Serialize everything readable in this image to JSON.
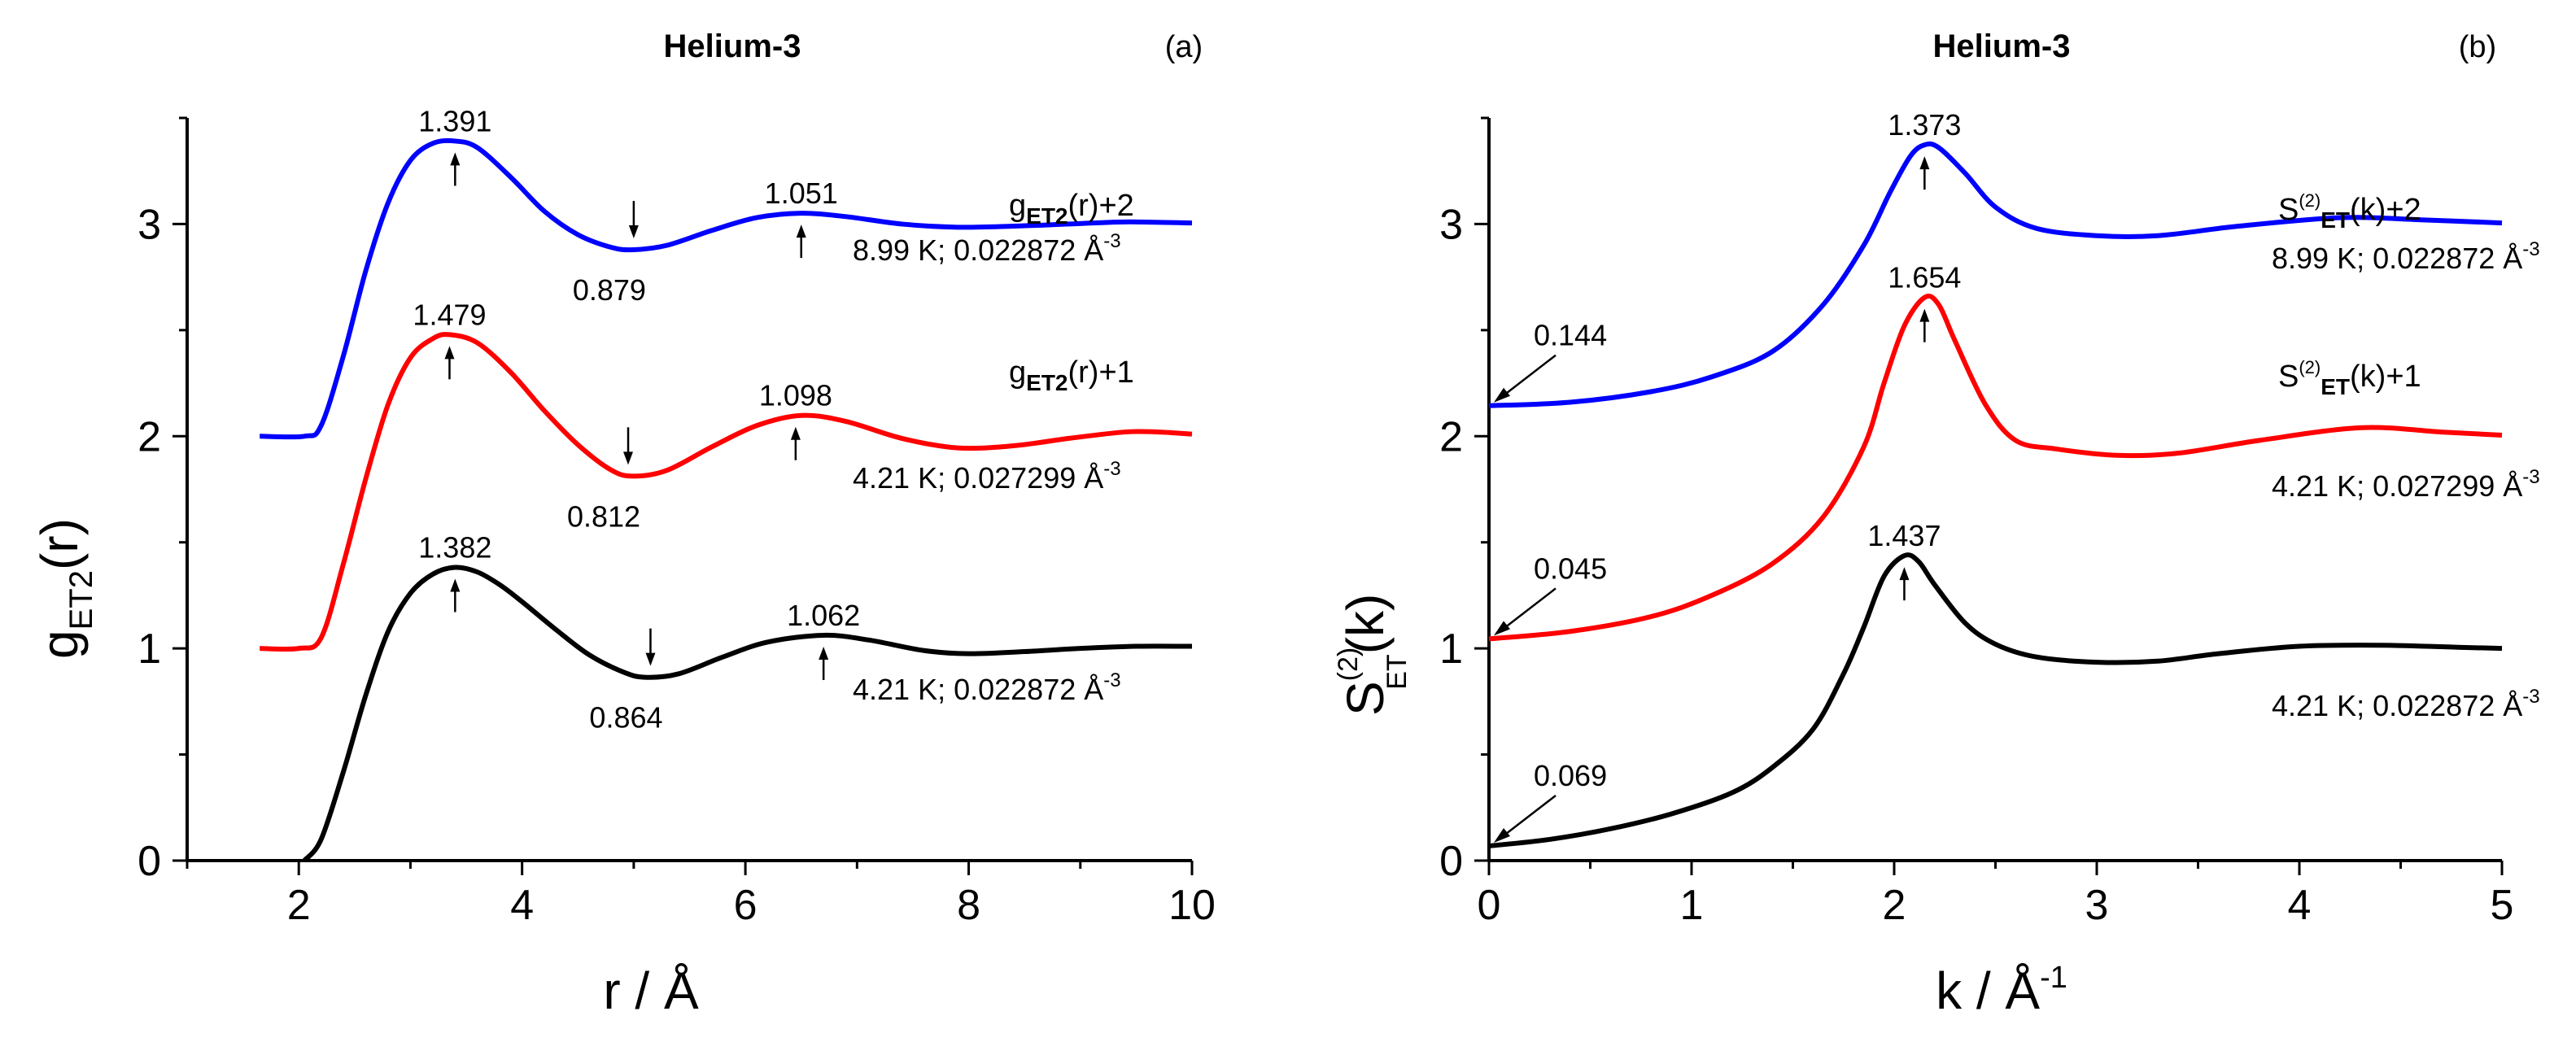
{
  "chart_data": [
    {
      "type": "line",
      "panel": "(a)",
      "title": "Helium-3",
      "xlabel": "r / Å",
      "ylabel": "g_ET2(r)",
      "xlim": [
        1,
        10
      ],
      "ylim": [
        0,
        3.5
      ],
      "x_ticks": [
        2,
        4,
        6,
        8,
        10
      ],
      "y_ticks": [
        0,
        1,
        2,
        3
      ],
      "series": [
        {
          "name": "4.21 K; 0.022872 Å⁻³",
          "color": "#000000",
          "offset": 0,
          "curve_label": "",
          "condition": "4.21 K; 0.022872 Å",
          "points": [
            [
              2.05,
              0
            ],
            [
              2.2,
              0.1
            ],
            [
              2.4,
              0.42
            ],
            [
              2.6,
              0.78
            ],
            [
              2.8,
              1.08
            ],
            [
              3.0,
              1.26
            ],
            [
              3.2,
              1.35
            ],
            [
              3.4,
              1.382
            ],
            [
              3.6,
              1.36
            ],
            [
              3.8,
              1.3
            ],
            [
              4.0,
              1.22
            ],
            [
              4.3,
              1.09
            ],
            [
              4.6,
              0.97
            ],
            [
              4.9,
              0.89
            ],
            [
              5.1,
              0.864
            ],
            [
              5.4,
              0.88
            ],
            [
              5.8,
              0.96
            ],
            [
              6.2,
              1.03
            ],
            [
              6.7,
              1.062
            ],
            [
              7.1,
              1.04
            ],
            [
              7.6,
              0.99
            ],
            [
              8.0,
              0.975
            ],
            [
              8.5,
              0.985
            ],
            [
              9.0,
              1.0
            ],
            [
              9.5,
              1.01
            ],
            [
              10.0,
              1.01
            ]
          ]
        },
        {
          "name": "4.21 K; 0.027299 Å⁻³",
          "color": "#ff0000",
          "offset": 1,
          "curve_label": "+1",
          "condition": "4.21 K; 0.027299 Å",
          "points": [
            [
              1.65,
              0
            ],
            [
              2.0,
              0
            ],
            [
              2.2,
              0.05
            ],
            [
              2.4,
              0.4
            ],
            [
              2.6,
              0.8
            ],
            [
              2.8,
              1.15
            ],
            [
              3.0,
              1.37
            ],
            [
              3.2,
              1.46
            ],
            [
              3.35,
              1.479
            ],
            [
              3.6,
              1.44
            ],
            [
              3.9,
              1.3
            ],
            [
              4.2,
              1.12
            ],
            [
              4.5,
              0.96
            ],
            [
              4.8,
              0.84
            ],
            [
              5.0,
              0.812
            ],
            [
              5.3,
              0.84
            ],
            [
              5.7,
              0.95
            ],
            [
              6.1,
              1.05
            ],
            [
              6.5,
              1.098
            ],
            [
              6.9,
              1.07
            ],
            [
              7.4,
              0.99
            ],
            [
              7.9,
              0.945
            ],
            [
              8.4,
              0.955
            ],
            [
              8.9,
              0.99
            ],
            [
              9.4,
              1.02
            ],
            [
              9.7,
              1.02
            ],
            [
              10.0,
              1.01
            ]
          ]
        },
        {
          "name": "8.99 K; 0.022872 Å⁻³",
          "color": "#0000ff",
          "offset": 2,
          "curve_label": "+2",
          "condition": "8.99 K; 0.022872 Å",
          "points": [
            [
              1.65,
              0
            ],
            [
              2.05,
              0
            ],
            [
              2.2,
              0.05
            ],
            [
              2.4,
              0.38
            ],
            [
              2.6,
              0.78
            ],
            [
              2.8,
              1.1
            ],
            [
              3.0,
              1.3
            ],
            [
              3.2,
              1.38
            ],
            [
              3.4,
              1.391
            ],
            [
              3.6,
              1.36
            ],
            [
              3.9,
              1.22
            ],
            [
              4.2,
              1.06
            ],
            [
              4.5,
              0.95
            ],
            [
              4.8,
              0.89
            ],
            [
              5.0,
              0.879
            ],
            [
              5.3,
              0.9
            ],
            [
              5.7,
              0.97
            ],
            [
              6.1,
              1.03
            ],
            [
              6.5,
              1.051
            ],
            [
              6.9,
              1.035
            ],
            [
              7.4,
              1.0
            ],
            [
              7.9,
              0.985
            ],
            [
              8.4,
              0.99
            ],
            [
              8.9,
              1.0
            ],
            [
              9.4,
              1.01
            ],
            [
              10.0,
              1.005
            ]
          ]
        }
      ],
      "annotations": [
        {
          "text": "1.391",
          "x": 3.4,
          "y": 3.391,
          "arrow": "up"
        },
        {
          "text": "0.879",
          "x": 5.0,
          "y": 2.879,
          "arrow": "down"
        },
        {
          "text": "1.051",
          "x": 6.5,
          "y": 3.051,
          "arrow": "up"
        },
        {
          "text": "1.479",
          "x": 3.35,
          "y": 2.479,
          "arrow": "up"
        },
        {
          "text": "0.812",
          "x": 4.95,
          "y": 1.812,
          "arrow": "down"
        },
        {
          "text": "1.098",
          "x": 6.45,
          "y": 2.098,
          "arrow": "up"
        },
        {
          "text": "1.382",
          "x": 3.4,
          "y": 1.382,
          "arrow": "up"
        },
        {
          "text": "0.864",
          "x": 5.15,
          "y": 0.864,
          "arrow": "down"
        },
        {
          "text": "1.062",
          "x": 6.7,
          "y": 1.062,
          "arrow": "up"
        }
      ]
    },
    {
      "type": "line",
      "panel": "(b)",
      "title": "Helium-3",
      "xlabel": "k / Å⁻¹",
      "ylabel": "S⁽²⁾ET(k)",
      "xlim": [
        0,
        5
      ],
      "ylim": [
        0,
        3.5
      ],
      "x_ticks": [
        0,
        1,
        2,
        3,
        4,
        5
      ],
      "y_ticks": [
        0,
        1,
        2,
        3
      ],
      "series": [
        {
          "name": "4.21 K; 0.022872 Å⁻³",
          "color": "#000000",
          "offset": 0,
          "curve_label": "",
          "condition": "4.21 K; 0.022872 Å",
          "points": [
            [
              0,
              0.069
            ],
            [
              0.3,
              0.1
            ],
            [
              0.6,
              0.15
            ],
            [
              0.9,
              0.22
            ],
            [
              1.2,
              0.32
            ],
            [
              1.4,
              0.44
            ],
            [
              1.6,
              0.62
            ],
            [
              1.75,
              0.88
            ],
            [
              1.85,
              1.1
            ],
            [
              1.95,
              1.34
            ],
            [
              2.05,
              1.437
            ],
            [
              2.12,
              1.41
            ],
            [
              2.2,
              1.3
            ],
            [
              2.35,
              1.12
            ],
            [
              2.5,
              1.02
            ],
            [
              2.7,
              0.96
            ],
            [
              3.0,
              0.935
            ],
            [
              3.3,
              0.94
            ],
            [
              3.6,
              0.975
            ],
            [
              4.0,
              1.01
            ],
            [
              4.4,
              1.015
            ],
            [
              4.8,
              1.005
            ],
            [
              5.0,
              1.0
            ]
          ]
        },
        {
          "name": "4.21 K; 0.027299 Å⁻³",
          "color": "#ff0000",
          "offset": 1,
          "curve_label": "+1",
          "condition": "4.21 K; 0.027299 Å",
          "points": [
            [
              0,
              0.045
            ],
            [
              0.4,
              0.08
            ],
            [
              0.8,
              0.15
            ],
            [
              1.1,
              0.25
            ],
            [
              1.4,
              0.4
            ],
            [
              1.65,
              0.62
            ],
            [
              1.85,
              0.95
            ],
            [
              1.95,
              1.25
            ],
            [
              2.05,
              1.52
            ],
            [
              2.15,
              1.654
            ],
            [
              2.22,
              1.62
            ],
            [
              2.3,
              1.45
            ],
            [
              2.45,
              1.15
            ],
            [
              2.6,
              0.98
            ],
            [
              2.8,
              0.94
            ],
            [
              3.1,
              0.91
            ],
            [
              3.4,
              0.92
            ],
            [
              3.8,
              0.98
            ],
            [
              4.3,
              1.04
            ],
            [
              4.7,
              1.02
            ],
            [
              5.0,
              1.005
            ]
          ]
        },
        {
          "name": "8.99 K; 0.022872 Å⁻³",
          "color": "#0000ff",
          "offset": 2,
          "curve_label": "+2",
          "condition": "8.99 K; 0.022872 Å",
          "points": [
            [
              0,
              0.144
            ],
            [
              0.4,
              0.16
            ],
            [
              0.8,
              0.21
            ],
            [
              1.1,
              0.28
            ],
            [
              1.4,
              0.4
            ],
            [
              1.65,
              0.62
            ],
            [
              1.85,
              0.9
            ],
            [
              1.98,
              1.15
            ],
            [
              2.08,
              1.32
            ],
            [
              2.15,
              1.373
            ],
            [
              2.22,
              1.36
            ],
            [
              2.35,
              1.24
            ],
            [
              2.5,
              1.08
            ],
            [
              2.7,
              0.98
            ],
            [
              3.0,
              0.945
            ],
            [
              3.3,
              0.945
            ],
            [
              3.7,
              0.99
            ],
            [
              4.2,
              1.03
            ],
            [
              4.6,
              1.02
            ],
            [
              5.0,
              1.005
            ]
          ]
        }
      ],
      "annotations": [
        {
          "text": "1.373",
          "x": 2.15,
          "y": 3.373,
          "arrow": "up"
        },
        {
          "text": "1.654",
          "x": 2.15,
          "y": 2.654,
          "arrow": "up"
        },
        {
          "text": "1.437",
          "x": 2.05,
          "y": 1.437,
          "arrow": "up"
        },
        {
          "text": "0.144",
          "x": 0,
          "y": 2.144,
          "arrow": "left-diag"
        },
        {
          "text": "0.045",
          "x": 0,
          "y": 1.045,
          "arrow": "left-diag"
        },
        {
          "text": "0.069",
          "x": 0,
          "y": 0.069,
          "arrow": "left-diag"
        }
      ]
    }
  ],
  "labels": {
    "left_title": "Helium-3",
    "left_panel": "(a)",
    "right_title": "Helium-3",
    "right_panel": "(b)",
    "left_ylabel_main": "g",
    "left_ylabel_sub": "ET2",
    "left_ylabel_tail": "(r)",
    "left_xlabel": "r / Å",
    "right_ylabel_main": "S",
    "right_ylabel_sup": "(2)",
    "right_ylabel_sub": "ET",
    "right_ylabel_tail": "(k)",
    "right_xlabel_main": "k / Å",
    "right_xlabel_sup": "-1",
    "g_curve_main": "g",
    "g_curve_sub": "ET2",
    "g_curve_tail_2": "(r)+2",
    "g_curve_tail_1": "(r)+1",
    "s_curve_main": "S",
    "s_curve_sup": "(2)",
    "s_curve_sub": "ET",
    "s_curve_tail_2": "(k)+2",
    "s_curve_tail_1": "(k)+1",
    "cond_sup": "-3"
  }
}
